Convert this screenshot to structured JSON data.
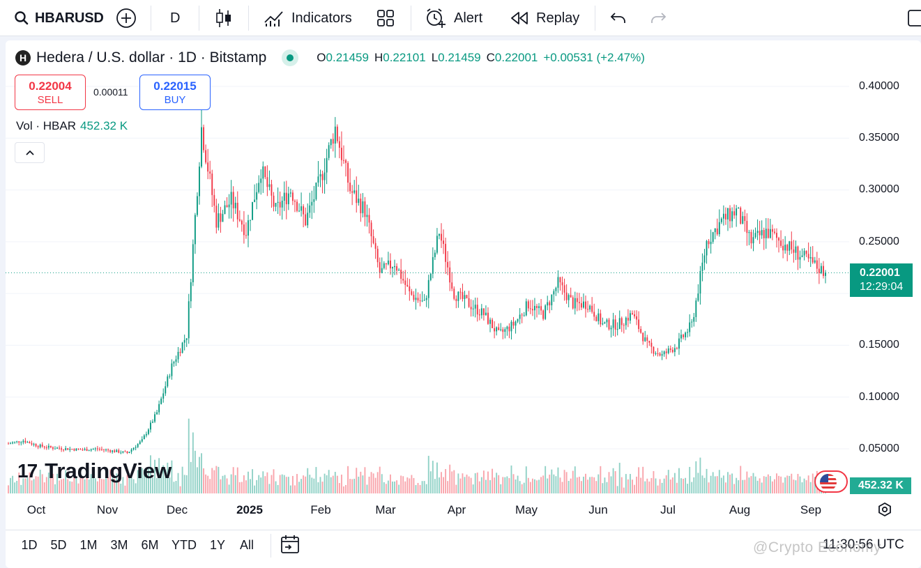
{
  "toolbar": {
    "symbol": "HBARUSD",
    "interval": "D",
    "indicators_label": "Indicators",
    "alert_label": "Alert",
    "replay_label": "Replay"
  },
  "legend": {
    "logo_letter": "H",
    "title": "Hedera / U.S. dollar · 1D · Bitstamp",
    "ohlc": {
      "o_label": "O",
      "o": "0.21459",
      "h_label": "H",
      "h": "0.22101",
      "l_label": "L",
      "l": "0.21459",
      "c_label": "C",
      "c": "0.22001",
      "change": "+0.00531 (+2.47%)"
    }
  },
  "trade": {
    "sell_price": "0.22004",
    "sell_label": "SELL",
    "spread": "0.00011",
    "buy_price": "0.22015",
    "buy_label": "BUY"
  },
  "volume_legend": {
    "label": "Vol · HBAR",
    "value": "452.32 K"
  },
  "price_axis": {
    "ticks": [
      "0.40000",
      "0.35000",
      "0.30000",
      "0.25000",
      "0.15000",
      "0.10000",
      "0.05000"
    ],
    "last_price": "0.22001",
    "countdown": "12:29:04",
    "volume_label": "452.32 K"
  },
  "time_axis": {
    "ticks": [
      "Oct",
      "Nov",
      "Dec",
      "2025",
      "Feb",
      "Mar",
      "Apr",
      "May",
      "Jun",
      "Jul",
      "Aug",
      "Sep"
    ]
  },
  "branding": {
    "logo_text": "TradingView",
    "logo_mark": "17"
  },
  "range_bar": {
    "ranges": [
      "1D",
      "5D",
      "1M",
      "3M",
      "6M",
      "YTD",
      "1Y",
      "All"
    ],
    "utc_time": "11:30:56 UTC"
  },
  "watermark": "@Crypto Economy",
  "colors": {
    "up": "#089981",
    "down": "#f23645",
    "accent": "#2962ff"
  },
  "chart_data": {
    "type": "candlestick",
    "y_range": [
      0,
      0.42
    ],
    "x_months": [
      "Oct",
      "Nov",
      "Dec",
      "2025",
      "Feb",
      "Mar",
      "Apr",
      "May",
      "Jun",
      "Jul",
      "Aug",
      "Sep"
    ],
    "close_by_week": [
      0.055,
      0.058,
      0.053,
      0.051,
      0.05,
      0.049,
      0.05,
      0.048,
      0.046,
      0.058,
      0.085,
      0.13,
      0.16,
      0.36,
      0.27,
      0.29,
      0.26,
      0.32,
      0.28,
      0.3,
      0.27,
      0.31,
      0.36,
      0.3,
      0.28,
      0.22,
      0.23,
      0.2,
      0.19,
      0.26,
      0.2,
      0.19,
      0.18,
      0.16,
      0.17,
      0.19,
      0.18,
      0.21,
      0.19,
      0.19,
      0.17,
      0.17,
      0.18,
      0.15,
      0.14,
      0.15,
      0.17,
      0.25,
      0.27,
      0.28,
      0.25,
      0.26,
      0.25,
      0.24,
      0.23,
      0.22
    ],
    "last_close": 0.22001
  }
}
